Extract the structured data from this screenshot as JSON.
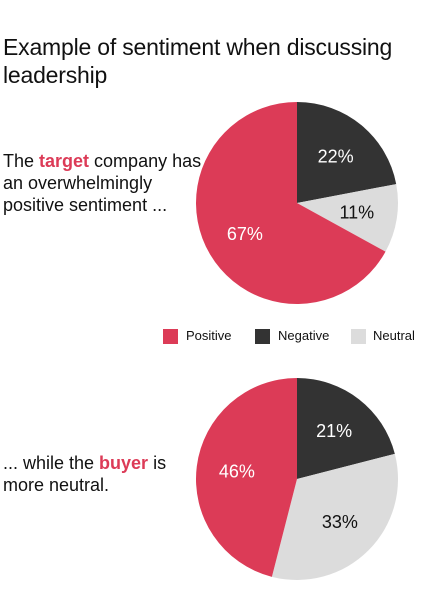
{
  "title": "Example of sentiment when discussing leadership",
  "colors": {
    "positive": "#dc3b57",
    "negative": "#333333",
    "neutral": "#dcdcdc"
  },
  "captions": {
    "top": {
      "pre": "The ",
      "highlight": "target",
      "post": " company has an overwhelmingly positive sentiment ..."
    },
    "bottom": {
      "pre": "... while the ",
      "highlight": "buyer",
      "post": " is more neutral."
    }
  },
  "legend": [
    {
      "label": "Positive",
      "color": "#dc3b57"
    },
    {
      "label": "Negative",
      "color": "#333333"
    },
    {
      "label": "Neutral",
      "color": "#dcdcdc"
    }
  ],
  "chart_data": [
    {
      "type": "pie",
      "title": "",
      "slices": [
        {
          "name": "Negative",
          "value": 22,
          "label": "22%",
          "color": "#333333",
          "label_color": "#ffffff"
        },
        {
          "name": "Neutral",
          "value": 11,
          "label": "11%",
          "color": "#dcdcdc",
          "label_color": "#111111"
        },
        {
          "name": "Positive",
          "value": 67,
          "label": "67%",
          "color": "#dc3b57",
          "label_color": "#ffffff"
        }
      ]
    },
    {
      "type": "pie",
      "title": "",
      "slices": [
        {
          "name": "Negative",
          "value": 21,
          "label": "21%",
          "color": "#333333",
          "label_color": "#ffffff"
        },
        {
          "name": "Neutral",
          "value": 33,
          "label": "33%",
          "color": "#dcdcdc",
          "label_color": "#111111"
        },
        {
          "name": "Positive",
          "value": 46,
          "label": "46%",
          "color": "#dc3b57",
          "label_color": "#ffffff"
        }
      ]
    }
  ]
}
